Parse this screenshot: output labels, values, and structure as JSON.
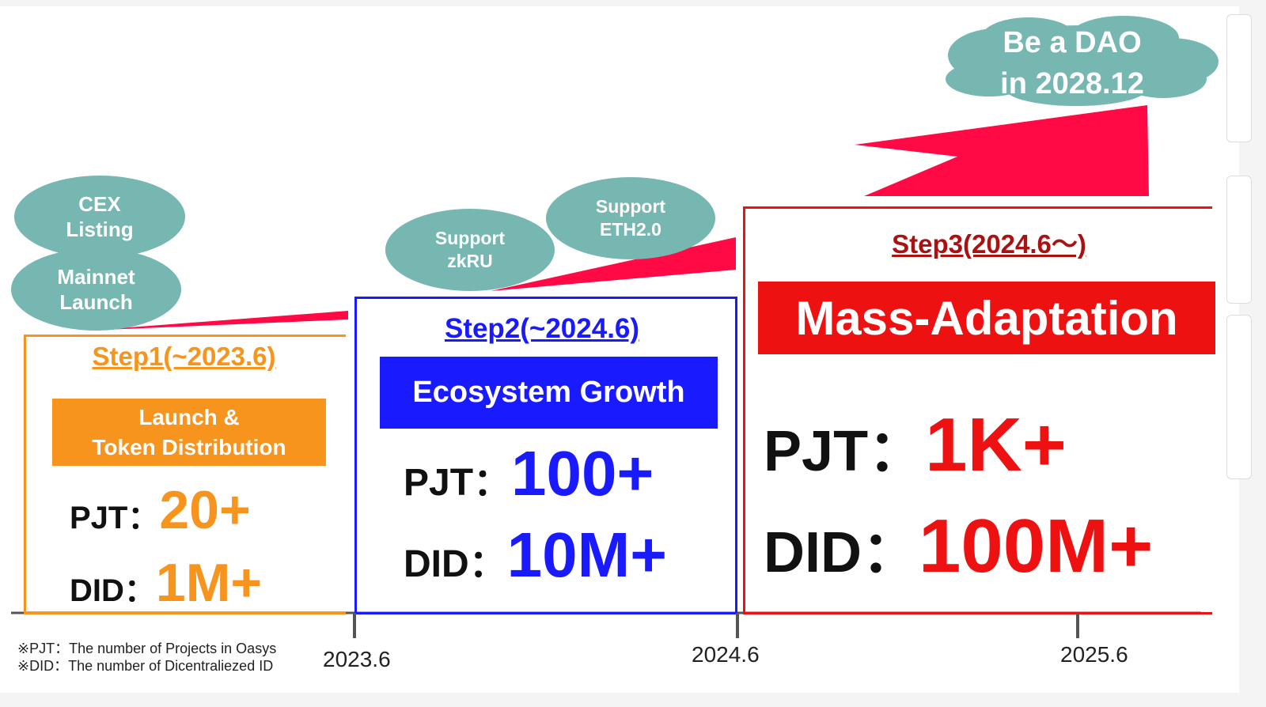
{
  "colors": {
    "step1": "#f7941d",
    "step2": "#1a1aff",
    "step3": "#ee1111",
    "bubble": "#76b7b2",
    "arrow": "#ff0a45"
  },
  "cloud": {
    "line1": "Be a DAO",
    "line2": "in 2028.12"
  },
  "bubbles": {
    "cex": {
      "line1": "CEX",
      "line2": "Listing"
    },
    "mainnet": {
      "line1": "Mainnet",
      "line2": "Launch"
    },
    "zkru": {
      "line1": "Support",
      "line2": "zkRU"
    },
    "eth": {
      "line1": "Support",
      "line2": "ETH2.0"
    }
  },
  "steps": [
    {
      "title": "Step1(~2023.6)",
      "banner_line1": "Launch &",
      "banner_line2": "Token Distribution",
      "pjt_label": "PJT：",
      "pjt_value": "20+",
      "did_label": "DID：",
      "did_value": "1M+"
    },
    {
      "title": "Step2(~2024.6)",
      "banner": "Ecosystem Growth",
      "pjt_label": "PJT：",
      "pjt_value": "100+",
      "did_label": "DID：",
      "did_value": "10M+"
    },
    {
      "title": "Step3(2024.6～)",
      "banner": "Mass-Adaptation",
      "pjt_label": "PJT：",
      "pjt_value": "1K+",
      "did_label": "DID：",
      "did_value": "100M+"
    }
  ],
  "timeline": {
    "ticks": [
      "2023.6",
      "2024.6",
      "2025.6"
    ]
  },
  "footnotes": [
    "※PJT：The number of Projects in Oasys",
    "※DID：The number of Dicentraliezed ID"
  ]
}
